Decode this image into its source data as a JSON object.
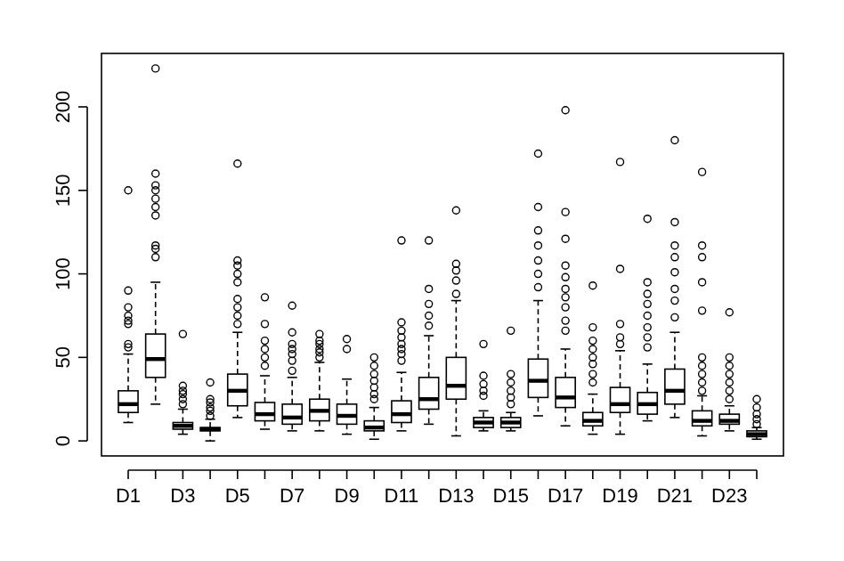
{
  "chart_data": {
    "type": "box",
    "categories": [
      "D1",
      null,
      "D3",
      null,
      "D5",
      null,
      "D7",
      null,
      "D9",
      null,
      "D11",
      null,
      "D13",
      null,
      "D15",
      null,
      "D17",
      null,
      "D19",
      null,
      "D21",
      null,
      "D23",
      null
    ],
    "ylim": [
      -9,
      232
    ],
    "yticks": [
      0,
      50,
      100,
      150,
      200
    ],
    "boxes": [
      {
        "low": 11,
        "q1": 17,
        "median": 22,
        "q3": 30,
        "high": 52,
        "outliers": [
          56,
          58,
          70,
          72,
          75,
          80,
          90,
          150
        ]
      },
      {
        "low": 22,
        "q1": 38,
        "median": 49,
        "q3": 64,
        "high": 95,
        "outliers": [
          110,
          115,
          117,
          135,
          140,
          145,
          150,
          153,
          160,
          223
        ]
      },
      {
        "low": 4,
        "q1": 7,
        "median": 9,
        "q3": 11,
        "high": 19,
        "outliers": [
          22,
          25,
          28,
          30,
          33,
          64
        ]
      },
      {
        "low": 0,
        "q1": 6,
        "median": 7,
        "q3": 8,
        "high": 13,
        "outliers": [
          15,
          18,
          20,
          23,
          25,
          35
        ]
      },
      {
        "low": 14,
        "q1": 21,
        "median": 30,
        "q3": 40,
        "high": 65,
        "outliers": [
          70,
          75,
          80,
          85,
          95,
          100,
          105,
          108,
          166
        ]
      },
      {
        "low": 7,
        "q1": 12,
        "median": 16,
        "q3": 23,
        "high": 39,
        "outliers": [
          45,
          50,
          55,
          60,
          70,
          86
        ]
      },
      {
        "low": 6,
        "q1": 10,
        "median": 14,
        "q3": 22,
        "high": 38,
        "outliers": [
          42,
          48,
          52,
          55,
          58,
          65,
          81
        ]
      },
      {
        "low": 6,
        "q1": 12,
        "median": 18,
        "q3": 25,
        "high": 47,
        "outliers": [
          50,
          53,
          55,
          58,
          60,
          64
        ]
      },
      {
        "low": 4,
        "q1": 10,
        "median": 15,
        "q3": 22,
        "high": 37,
        "outliers": [
          55,
          61
        ]
      },
      {
        "low": 1,
        "q1": 6,
        "median": 8,
        "q3": 12,
        "high": 20,
        "outliers": [
          25,
          28,
          32,
          36,
          40,
          45,
          50
        ]
      },
      {
        "low": 6,
        "q1": 11,
        "median": 16,
        "q3": 24,
        "high": 41,
        "outliers": [
          48,
          52,
          55,
          58,
          62,
          66,
          71,
          120
        ]
      },
      {
        "low": 10,
        "q1": 19,
        "median": 25,
        "q3": 38,
        "high": 63,
        "outliers": [
          69,
          75,
          82,
          91,
          120
        ]
      },
      {
        "low": 3,
        "q1": 25,
        "median": 33,
        "q3": 50,
        "high": 84,
        "outliers": [
          88,
          96,
          102,
          106,
          138
        ]
      },
      {
        "low": 6,
        "q1": 8,
        "median": 11,
        "q3": 14,
        "high": 18,
        "outliers": [
          27,
          30,
          34,
          39,
          58
        ]
      },
      {
        "low": 6,
        "q1": 8,
        "median": 11,
        "q3": 14,
        "high": 17,
        "outliers": [
          22,
          26,
          30,
          35,
          40,
          66
        ]
      },
      {
        "low": 15,
        "q1": 26,
        "median": 36,
        "q3": 49,
        "high": 84,
        "outliers": [
          92,
          100,
          108,
          117,
          126,
          140,
          172
        ]
      },
      {
        "low": 9,
        "q1": 20,
        "median": 26,
        "q3": 38,
        "high": 55,
        "outliers": [
          66,
          72,
          80,
          86,
          91,
          98,
          105,
          121,
          137,
          198
        ]
      },
      {
        "low": 4,
        "q1": 9,
        "median": 12,
        "q3": 17,
        "high": 28,
        "outliers": [
          35,
          40,
          46,
          50,
          55,
          60,
          68,
          93
        ]
      },
      {
        "low": 4,
        "q1": 17,
        "median": 22,
        "q3": 32,
        "high": 54,
        "outliers": [
          58,
          62,
          70,
          103,
          167
        ]
      },
      {
        "low": 12,
        "q1": 16,
        "median": 22,
        "q3": 29,
        "high": 46,
        "outliers": [
          56,
          62,
          68,
          75,
          82,
          88,
          95,
          133
        ]
      },
      {
        "low": 14,
        "q1": 22,
        "median": 30,
        "q3": 43,
        "high": 65,
        "outliers": [
          74,
          84,
          91,
          101,
          110,
          117,
          131,
          180
        ]
      },
      {
        "low": 3,
        "q1": 9,
        "median": 12,
        "q3": 18,
        "high": 27,
        "outliers": [
          30,
          35,
          40,
          45,
          50,
          78,
          95,
          110,
          117,
          161
        ]
      },
      {
        "low": 6,
        "q1": 10,
        "median": 12,
        "q3": 16,
        "high": 21,
        "outliers": [
          25,
          30,
          35,
          40,
          45,
          50,
          77
        ]
      },
      {
        "low": 1,
        "q1": 2.5,
        "median": 4,
        "q3": 6,
        "high": 8,
        "outliers": [
          10,
          13,
          16,
          20,
          25
        ]
      }
    ]
  }
}
